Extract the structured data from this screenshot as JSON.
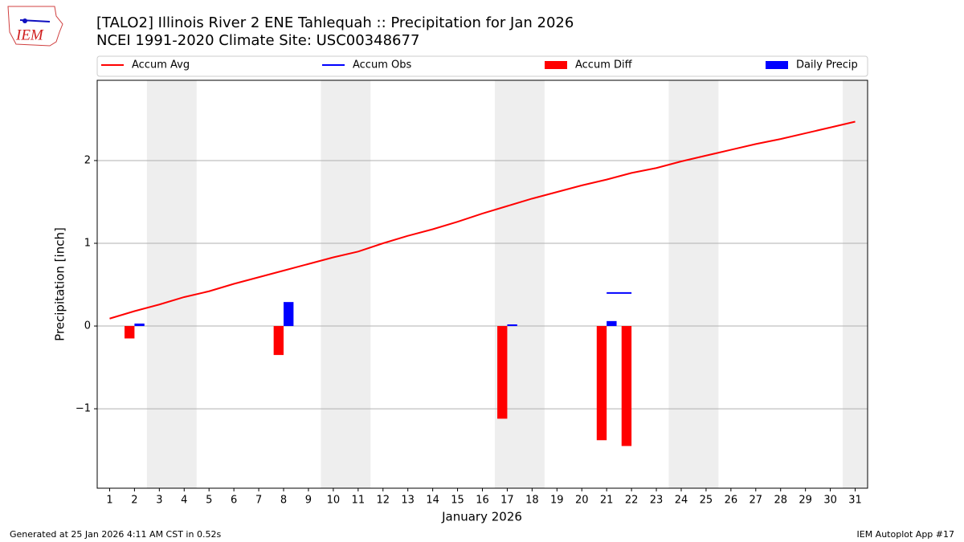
{
  "chart_data": {
    "type": "bar",
    "title": "[TALO2] Illinois River 2 ENE Tahlequah :: Precipitation for Jan 2026",
    "subtitle": "NCEI 1991-2020 Climate Site: USC00348677",
    "xlabel": "January 2026",
    "ylabel": "Precipitation [inch]",
    "logo": "IEM",
    "footer_left": "Generated at 25 Jan 2026 4:11 AM CST in 0.52s",
    "footer_right": "IEM Autoplot App #17",
    "x": [
      1,
      2,
      3,
      4,
      5,
      6,
      7,
      8,
      9,
      10,
      11,
      12,
      13,
      14,
      15,
      16,
      17,
      18,
      19,
      20,
      21,
      22,
      23,
      24,
      25,
      26,
      27,
      28,
      29,
      30,
      31
    ],
    "xlim": [
      0.5,
      31.5
    ],
    "xticks": [
      1,
      2,
      3,
      4,
      5,
      6,
      7,
      8,
      9,
      10,
      11,
      12,
      13,
      14,
      15,
      16,
      17,
      18,
      19,
      20,
      21,
      22,
      23,
      24,
      25,
      26,
      27,
      28,
      29,
      30,
      31
    ],
    "ylim": [
      -1.96,
      2.97
    ],
    "yticks": [
      {
        "value": -1,
        "label": "−1"
      },
      0,
      1,
      2
    ],
    "grid": true,
    "legend": "top",
    "series": [
      {
        "name": "Accum Avg",
        "type": "line",
        "color": "#ff0000",
        "values": [
          0.09,
          0.18,
          0.26,
          0.35,
          0.42,
          0.51,
          0.59,
          0.67,
          0.75,
          0.83,
          0.9,
          1.0,
          1.09,
          1.17,
          1.26,
          1.36,
          1.45,
          1.54,
          1.62,
          1.7,
          1.77,
          1.85,
          1.91,
          1.99,
          2.06,
          2.13,
          2.2,
          2.26,
          2.33,
          2.4,
          2.47
        ]
      },
      {
        "name": "Accum Obs",
        "type": "line",
        "color": "#0000ff",
        "values": [
          null,
          null,
          null,
          null,
          null,
          null,
          null,
          null,
          null,
          null,
          null,
          null,
          null,
          null,
          null,
          null,
          null,
          null,
          null,
          null,
          0.4,
          0.4,
          null,
          null,
          null,
          null,
          null,
          null,
          null,
          null,
          null
        ]
      },
      {
        "name": "Accum Diff",
        "type": "bar",
        "color": "#ff0000",
        "values": [
          null,
          -0.15,
          null,
          null,
          null,
          null,
          null,
          -0.35,
          null,
          null,
          null,
          null,
          null,
          null,
          null,
          null,
          -1.12,
          null,
          null,
          null,
          -1.38,
          -1.45,
          null,
          null,
          null,
          null,
          null,
          null,
          null,
          null,
          null
        ]
      },
      {
        "name": "Daily Precip",
        "type": "bar",
        "color": "#0000ff",
        "values": [
          null,
          0.03,
          null,
          null,
          null,
          null,
          null,
          0.29,
          null,
          null,
          null,
          null,
          null,
          null,
          null,
          null,
          0.02,
          null,
          null,
          null,
          0.06,
          null,
          null,
          null,
          null,
          null,
          null,
          null,
          null,
          null,
          null
        ]
      }
    ]
  }
}
